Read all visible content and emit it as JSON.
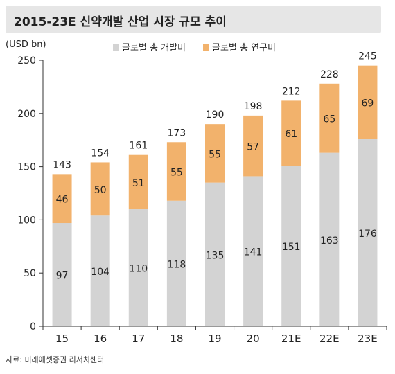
{
  "title": "2015-23E 신약개발 산업 시장 규모 추이",
  "source": "자료: 미래에셋증권 리서치센터",
  "chart_data": {
    "type": "bar",
    "stacked": true,
    "ylabel": "(USD bn)",
    "ylim": [
      0,
      250
    ],
    "yticks": [
      0,
      50,
      100,
      150,
      200,
      250
    ],
    "categories": [
      "15",
      "16",
      "17",
      "18",
      "19",
      "20",
      "21E",
      "22E",
      "23E"
    ],
    "series": [
      {
        "name": "글로벌 총 개발비",
        "color": "#d3d3d3",
        "values": [
          97,
          104,
          110,
          118,
          135,
          141,
          151,
          163,
          176
        ]
      },
      {
        "name": "글로벌 총 연구비",
        "color": "#f2b26c",
        "values": [
          46,
          50,
          51,
          55,
          55,
          57,
          61,
          65,
          69
        ]
      }
    ],
    "totals": [
      143,
      154,
      161,
      173,
      190,
      198,
      212,
      228,
      245
    ],
    "legend_position": "top",
    "grid": false
  }
}
